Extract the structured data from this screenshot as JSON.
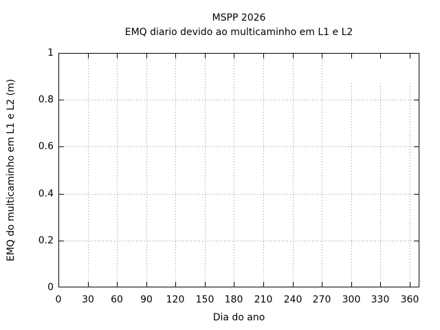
{
  "chart": {
    "title_line1": "MSPP 2026",
    "title_line2": "EMQ diario devido ao multicaminho em L1 e L2",
    "xlabel": "Dia do ano",
    "ylabel": "EMQ do multicaminho em L1 e L2 (m)"
  },
  "chart_data": {
    "type": "line",
    "title": "MSPP 2026",
    "subtitle": "EMQ diario devido ao multicaminho em L1 e L2",
    "xlabel": "Dia do ano",
    "ylabel": "EMQ do multicaminho em L1 e L2 (m)",
    "xlim": [
      0,
      370
    ],
    "ylim": [
      0,
      1
    ],
    "xticks": [
      0,
      30,
      60,
      90,
      120,
      150,
      180,
      210,
      240,
      270,
      300,
      330,
      360
    ],
    "xtick_labels": [
      "0",
      "30",
      "60",
      "90",
      "120",
      "150",
      "180",
      "210",
      "240",
      "270",
      "300",
      "330",
      "360"
    ],
    "yticks": [
      0,
      0.2,
      0.4,
      0.6,
      0.8,
      1
    ],
    "ytick_labels": [
      "0",
      "0.2",
      "0.4",
      "0.6",
      "0.8",
      "1"
    ],
    "grid": true,
    "grid_style": "dotted",
    "grid_color": "#8c8c8c",
    "border_color": "#000000",
    "background_color": "#ffffff",
    "legend": "none",
    "series": [],
    "vgrid_truncated": {
      "x": [
        300,
        330,
        360
      ],
      "top_value": 0.87
    }
  }
}
